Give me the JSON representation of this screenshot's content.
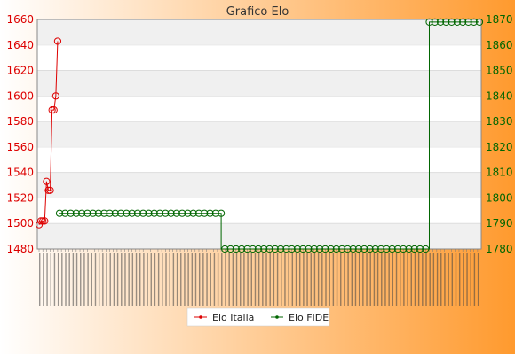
{
  "chart_data": {
    "type": "line",
    "title": "Grafico Elo",
    "colors": {
      "background_gradient": [
        "#ffffff",
        "#ff9a2e"
      ],
      "elo_italia": "#dd0000",
      "elo_fide": "#006600",
      "plot_bg": "#ffffff",
      "band_bg": "#f0f0f0"
    },
    "axes": {
      "left": {
        "ylim": [
          1480,
          1660
        ],
        "ticks": [
          1480,
          1500,
          1520,
          1540,
          1560,
          1580,
          1600,
          1620,
          1640,
          1660
        ],
        "tick_color": "#dd0000"
      },
      "right": {
        "ylim": [
          1780,
          1870
        ],
        "ticks": [
          1780,
          1790,
          1800,
          1810,
          1820,
          1830,
          1840,
          1850,
          1860,
          1870
        ],
        "tick_color": "#006600"
      }
    },
    "x_tick_labels": "dense, rotated 90°, overlapping and illegible date labels",
    "legend_position": "bottom-center",
    "series": [
      {
        "name": "Elo Italia",
        "axis": "left",
        "color": "#dd0000",
        "values": [
          1499,
          1502,
          1502,
          1502,
          1533,
          1526,
          1526,
          1589,
          1589,
          1600,
          1643
        ]
      },
      {
        "name": "Elo FIDE",
        "axis": "right",
        "color": "#006600",
        "segments": [
          {
            "from_index": 11,
            "to_index": 98,
            "value": 1794
          },
          {
            "from_index": 98,
            "to_index": 210,
            "value": 1780
          },
          {
            "from_index": 210,
            "to_index": 237,
            "value": 1869
          }
        ]
      }
    ],
    "total_points": 238
  }
}
